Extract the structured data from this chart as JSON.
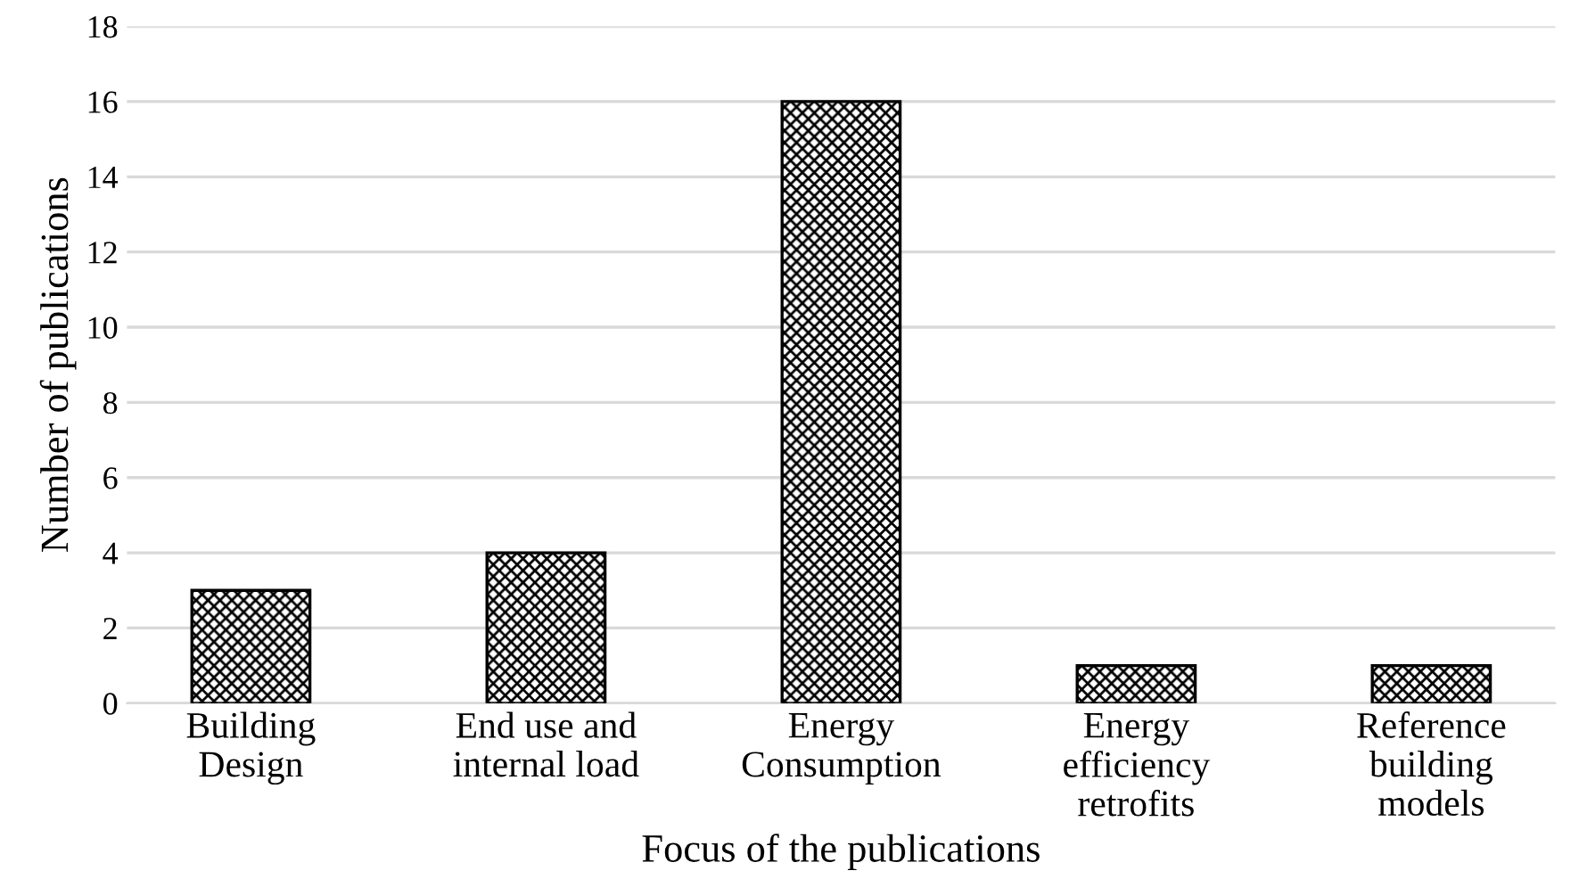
{
  "chart_data": {
    "type": "bar",
    "xlabel": "Focus of the publications",
    "ylabel": "Number of publications",
    "categories": [
      "Building\nDesign",
      "End use and\ninternal load",
      "Energy\nConsumption",
      "Energy\nefficiency\nretrofits",
      "Reference\nbuilding\nmodels"
    ],
    "values": [
      3,
      4,
      16,
      1,
      1
    ],
    "color": "#000000",
    "ylim": [
      0,
      18
    ],
    "yticks": [
      0,
      2,
      4,
      6,
      8,
      10,
      12,
      14,
      16,
      18
    ],
    "grid": "y",
    "legend": false
  }
}
